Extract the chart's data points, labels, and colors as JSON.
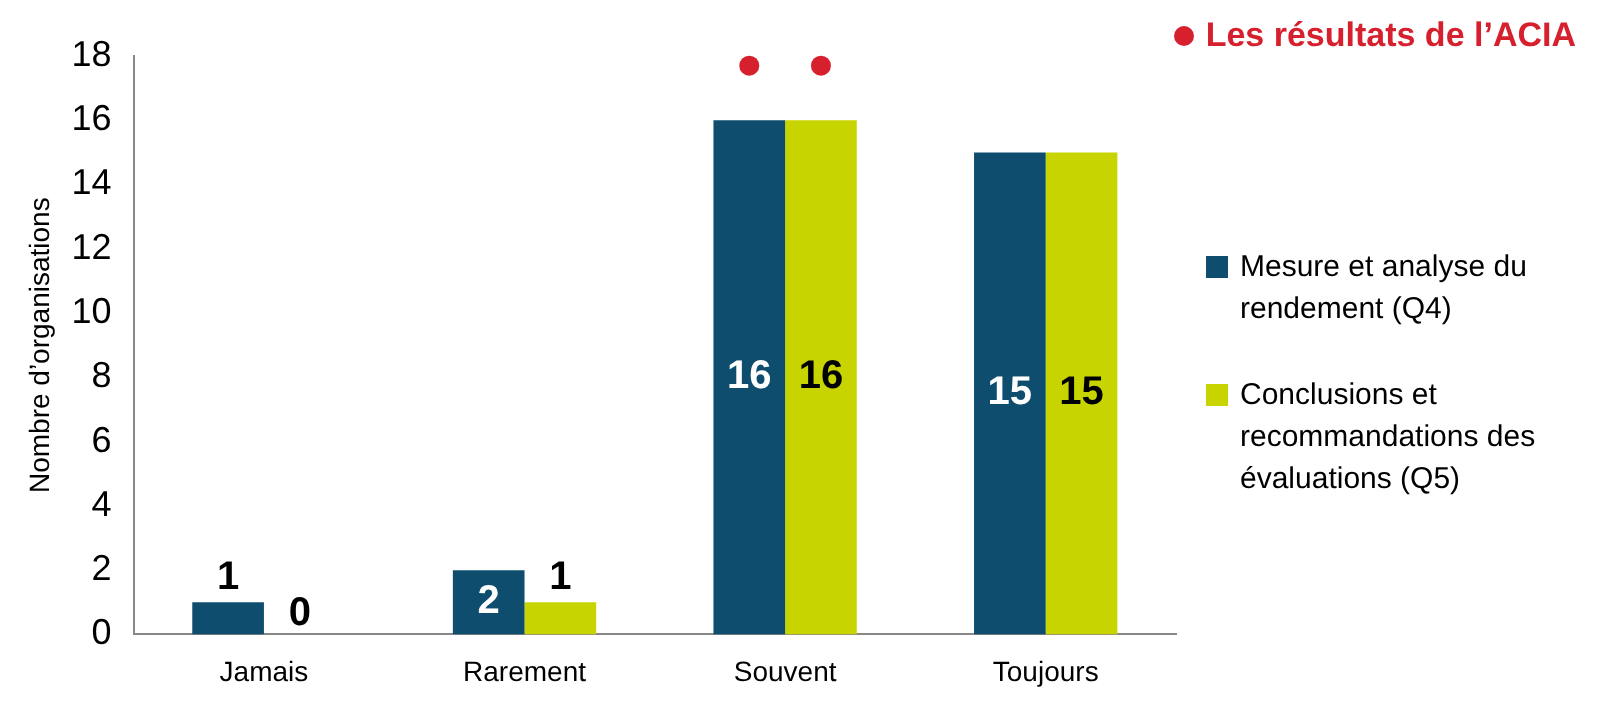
{
  "chart_data": {
    "type": "bar",
    "ylabel": "Nombre d’organisations",
    "categories": [
      "Jamais",
      "Rarement",
      "Souvent",
      "Toujours"
    ],
    "series": [
      {
        "name": "Mesure et analyse du rendement (Q4)",
        "color": "#0e4d6e",
        "values": [
          1,
          2,
          16,
          15
        ],
        "value_labels": [
          "1",
          "2",
          "16",
          "15"
        ]
      },
      {
        "name": "Conclusions et recommandations des évaluations (Q5)",
        "color": "#c8d400",
        "values": [
          0,
          1,
          16,
          15
        ],
        "value_labels": [
          "0",
          "1",
          "16",
          "15"
        ]
      },
      {
        "name": "Les résultats de l’ACIA",
        "type": "scatter",
        "color": "#d7202e",
        "x": [
          "Souvent",
          "Souvent"
        ],
        "values": [
          17.7,
          17.7
        ],
        "marker": "circle"
      }
    ],
    "ylim": [
      0,
      18
    ],
    "yticks": [
      0,
      2,
      4,
      6,
      8,
      10,
      12,
      14,
      16,
      18
    ],
    "grid": false,
    "legend": "right"
  }
}
